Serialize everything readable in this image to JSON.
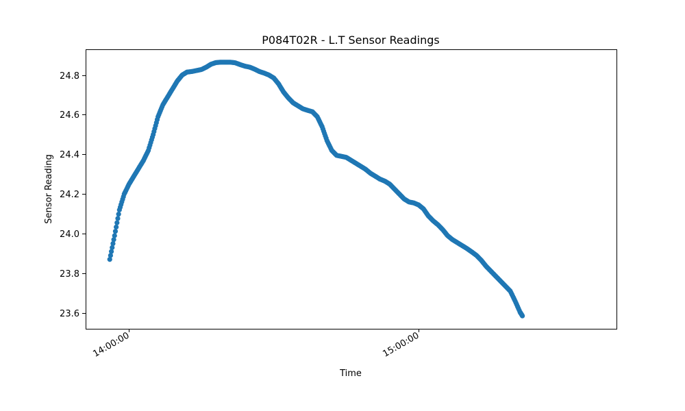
{
  "chart_data": {
    "type": "scatter",
    "title": "P084T02R - L.T Sensor Readings",
    "xlabel": "Time",
    "ylabel": "Sensor Reading",
    "x_type": "time",
    "xlim": [
      "13:51:00",
      "15:41:00"
    ],
    "ylim": [
      23.52,
      24.93
    ],
    "x_ticks": [
      "14:00:00",
      "15:00:00"
    ],
    "y_ticks": [
      "23.6",
      "23.8",
      "24.0",
      "24.2",
      "24.4",
      "24.6",
      "24.8"
    ],
    "grid": false,
    "legend": "none",
    "series_color": "#1f77b4",
    "series": [
      {
        "points": [
          [
            "13:56:00",
            23.87
          ],
          [
            "13:57:00",
            23.99
          ],
          [
            "13:58:00",
            24.12
          ],
          [
            "13:59:00",
            24.2
          ],
          [
            "14:00:00",
            24.25
          ],
          [
            "14:01:00",
            24.29
          ],
          [
            "14:02:00",
            24.33
          ],
          [
            "14:03:00",
            24.37
          ],
          [
            "14:04:00",
            24.42
          ],
          [
            "14:05:00",
            24.5
          ],
          [
            "14:06:00",
            24.59
          ],
          [
            "14:07:00",
            24.65
          ],
          [
            "14:08:00",
            24.69
          ],
          [
            "14:09:00",
            24.73
          ],
          [
            "14:10:00",
            24.77
          ],
          [
            "14:11:00",
            24.8
          ],
          [
            "14:12:00",
            24.815
          ],
          [
            "14:13:00",
            24.818
          ],
          [
            "14:14:00",
            24.823
          ],
          [
            "14:15:00",
            24.828
          ],
          [
            "14:16:00",
            24.84
          ],
          [
            "14:17:00",
            24.855
          ],
          [
            "14:18:00",
            24.863
          ],
          [
            "14:19:00",
            24.865
          ],
          [
            "14:20:00",
            24.865
          ],
          [
            "14:21:00",
            24.865
          ],
          [
            "14:22:00",
            24.862
          ],
          [
            "14:23:00",
            24.853
          ],
          [
            "14:24:00",
            24.845
          ],
          [
            "14:25:00",
            24.84
          ],
          [
            "14:26:00",
            24.83
          ],
          [
            "14:27:00",
            24.818
          ],
          [
            "14:28:00",
            24.81
          ],
          [
            "14:29:00",
            24.8
          ],
          [
            "14:30:00",
            24.785
          ],
          [
            "14:31:00",
            24.755
          ],
          [
            "14:32:00",
            24.715
          ],
          [
            "14:33:00",
            24.685
          ],
          [
            "14:34:00",
            24.66
          ],
          [
            "14:35:00",
            24.645
          ],
          [
            "14:36:00",
            24.63
          ],
          [
            "14:37:00",
            24.622
          ],
          [
            "14:38:00",
            24.615
          ],
          [
            "14:39:00",
            24.59
          ],
          [
            "14:40:00",
            24.54
          ],
          [
            "14:41:00",
            24.47
          ],
          [
            "14:42:00",
            24.42
          ],
          [
            "14:43:00",
            24.395
          ],
          [
            "14:44:00",
            24.39
          ],
          [
            "14:45:00",
            24.385
          ],
          [
            "14:46:00",
            24.37
          ],
          [
            "14:47:00",
            24.355
          ],
          [
            "14:48:00",
            24.34
          ],
          [
            "14:49:00",
            24.325
          ],
          [
            "14:50:00",
            24.305
          ],
          [
            "14:51:00",
            24.29
          ],
          [
            "14:52:00",
            24.275
          ],
          [
            "14:53:00",
            24.265
          ],
          [
            "14:54:00",
            24.25
          ],
          [
            "14:55:00",
            24.225
          ],
          [
            "14:56:00",
            24.2
          ],
          [
            "14:57:00",
            24.175
          ],
          [
            "14:58:00",
            24.16
          ],
          [
            "14:59:00",
            24.155
          ],
          [
            "15:00:00",
            24.145
          ],
          [
            "15:01:00",
            24.125
          ],
          [
            "15:02:00",
            24.09
          ],
          [
            "15:03:00",
            24.065
          ],
          [
            "15:04:00",
            24.045
          ],
          [
            "15:05:00",
            24.02
          ],
          [
            "15:06:00",
            23.99
          ],
          [
            "15:07:00",
            23.97
          ],
          [
            "15:08:00",
            23.955
          ],
          [
            "15:09:00",
            23.94
          ],
          [
            "15:10:00",
            23.925
          ],
          [
            "15:11:00",
            23.908
          ],
          [
            "15:12:00",
            23.89
          ],
          [
            "15:13:00",
            23.865
          ],
          [
            "15:14:00",
            23.835
          ],
          [
            "15:15:00",
            23.81
          ],
          [
            "15:16:00",
            23.785
          ],
          [
            "15:17:00",
            23.76
          ],
          [
            "15:18:00",
            23.735
          ],
          [
            "15:19:00",
            23.71
          ],
          [
            "15:20:00",
            23.66
          ],
          [
            "15:21:00",
            23.605
          ],
          [
            "15:21:30",
            23.585
          ]
        ]
      }
    ]
  }
}
